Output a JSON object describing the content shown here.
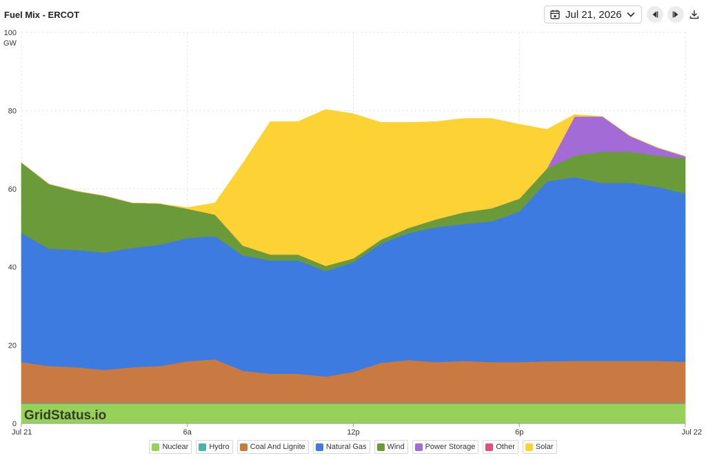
{
  "header": {
    "title": "Fuel Mix - ERCOT",
    "date_label": "Jul 21, 2026"
  },
  "watermark": "GridStatus.io",
  "icons": {
    "calendar": "calendar-icon",
    "dropdown": "chevron-down-icon",
    "prev": "triangle-left-icon",
    "next": "triangle-right-icon",
    "download": "download-icon"
  },
  "chart_data": {
    "type": "area",
    "stacked": true,
    "ylabel": "GW",
    "ylim": [
      0,
      100
    ],
    "yticks": [
      0,
      20,
      40,
      60,
      80,
      100
    ],
    "xtick_labels": [
      "Jul 21",
      "6a",
      "12p",
      "6p",
      "Jul 22"
    ],
    "xtick_hours": [
      0,
      6,
      12,
      18,
      24
    ],
    "grid": true,
    "legend_position": "bottom",
    "x_hours": [
      0,
      1,
      2,
      3,
      4,
      5,
      6,
      7,
      8,
      9,
      10,
      11,
      12,
      13,
      14,
      15,
      16,
      17,
      18,
      19,
      20,
      21,
      22,
      23,
      24
    ],
    "series": [
      {
        "name": "Nuclear",
        "color": "#97d15a",
        "values": [
          5,
          5,
          5,
          5,
          5,
          5,
          5,
          5,
          5,
          5,
          5,
          5,
          5,
          5,
          5,
          5,
          5,
          5,
          5,
          5,
          5,
          5,
          5,
          5,
          5
        ]
      },
      {
        "name": "Hydro",
        "color": "#4bb3a7",
        "values": [
          0.2,
          0.2,
          0.2,
          0.2,
          0.2,
          0.2,
          0.2,
          0.2,
          0.2,
          0.2,
          0.2,
          0.2,
          0.2,
          0.2,
          0.2,
          0.2,
          0.2,
          0.2,
          0.2,
          0.2,
          0.2,
          0.2,
          0.2,
          0.2,
          0.2
        ]
      },
      {
        "name": "Coal And Lignite",
        "color": "#c87a42",
        "values": [
          10.5,
          9.5,
          9.2,
          8.5,
          9.2,
          9.5,
          10.7,
          11.2,
          8.3,
          7.5,
          7.5,
          6.8,
          8.0,
          10.3,
          11.0,
          10.5,
          10.8,
          10.5,
          10.5,
          10.7,
          10.8,
          10.8,
          10.8,
          10.8,
          10.6
        ]
      },
      {
        "name": "Natural Gas",
        "color": "#3d7be0",
        "values": [
          33,
          30,
          30,
          30,
          30.5,
          31,
          31.5,
          31.5,
          29.5,
          29,
          29,
          27,
          28,
          30.5,
          32.5,
          34.5,
          35,
          36,
          38.5,
          46,
          47,
          45.5,
          45.5,
          44.5,
          43
        ]
      },
      {
        "name": "Wind",
        "color": "#6a9a3a",
        "values": [
          18,
          16.5,
          15,
          14.5,
          11.5,
          10.5,
          7.5,
          5.5,
          2.5,
          1.5,
          1.5,
          1.3,
          1,
          1,
          1.3,
          2,
          3,
          3.3,
          3.3,
          3.3,
          5.5,
          8,
          8,
          8,
          9
        ]
      },
      {
        "name": "Power Storage",
        "color": "#a26bd6",
        "values": [
          0,
          0,
          0,
          0,
          0,
          0,
          0,
          0,
          0,
          0,
          0,
          0,
          0,
          0,
          0,
          0,
          0,
          0,
          0,
          0,
          10,
          9,
          4,
          2,
          0.5
        ]
      },
      {
        "name": "Other",
        "color": "#e0507d",
        "values": [
          0,
          0,
          0,
          0,
          0,
          0,
          0,
          0,
          0,
          0,
          0,
          0,
          0,
          0,
          0,
          0,
          0,
          0,
          0,
          0,
          0,
          0,
          0,
          0,
          0
        ]
      },
      {
        "name": "Solar",
        "color": "#fdd235",
        "values": [
          0,
          0,
          0,
          0,
          0,
          0,
          0.3,
          3,
          21,
          34,
          34,
          40,
          37,
          30,
          27,
          25,
          24,
          23,
          19,
          10,
          0.5,
          0,
          0,
          0,
          0
        ]
      }
    ]
  }
}
